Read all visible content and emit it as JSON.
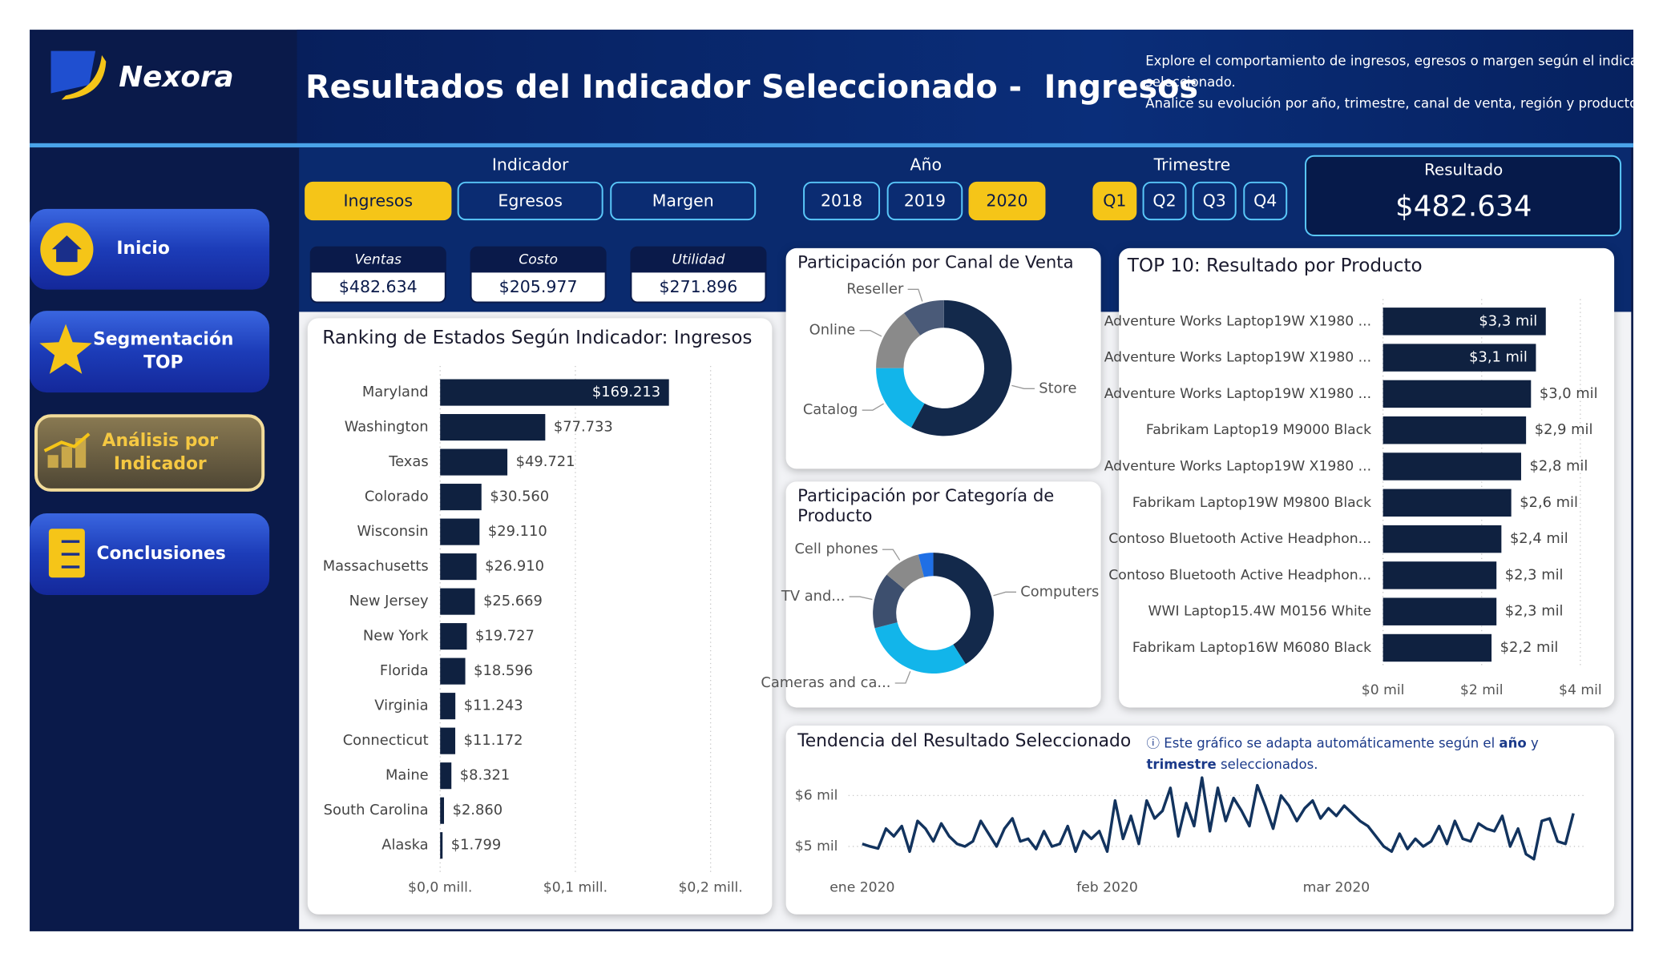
{
  "header": {
    "brand": "Nexora",
    "title": "Resultados del Indicador Seleccionado -  Ingresos",
    "description": [
      "Explore el comportamiento de ingresos, egresos o margen según el indicador",
      "seleccionado.",
      "Analice su evolución por año, trimestre, canal de venta, región y producto."
    ]
  },
  "nav": [
    {
      "lines": [
        "Inicio"
      ]
    },
    {
      "lines": [
        "Segmentación",
        "TOP"
      ]
    },
    {
      "lines": [
        "Análisis por",
        "Indicador"
      ],
      "active": true
    },
    {
      "lines": [
        "Conclusiones"
      ]
    }
  ],
  "filters": [
    {
      "label": "Indicador",
      "options": [
        "Ingresos",
        "Egresos",
        "Margen"
      ],
      "selected": 0
    },
    {
      "label": "Año",
      "options": [
        "2018",
        "2019",
        "2020"
      ],
      "selected": 2
    },
    {
      "label": "Trimestre",
      "options": [
        "Q1",
        "Q2",
        "Q3",
        "Q4"
      ],
      "selected": 0
    }
  ],
  "result": {
    "label": "Resultado",
    "value": "$482.634"
  },
  "kpis": [
    {
      "label": "Ventas",
      "value": "$482.634"
    },
    {
      "label": "Costo",
      "value": "$205.977"
    },
    {
      "label": "Utilidad",
      "value": "$271.896"
    }
  ],
  "chart_data": [
    {
      "type": "hbar",
      "title": "Ranking de Estados Según Indicador: Ingresos",
      "categories": [
        "Maryland",
        "Washington",
        "Texas",
        "Colorado",
        "Wisconsin",
        "Massachusetts",
        "New Jersey",
        "New York",
        "Florida",
        "Virginia",
        "Connecticut",
        "Maine",
        "South Carolina",
        "Alaska"
      ],
      "values": [
        169213,
        77733,
        49721,
        30560,
        29110,
        26910,
        25669,
        19727,
        18596,
        11243,
        11172,
        8321,
        2860,
        1799
      ],
      "value_labels": [
        "$169.213",
        "$77.733",
        "$49.721",
        "$30.560",
        "$29.110",
        "$26.910",
        "$25.669",
        "$19.727",
        "$18.596",
        "$11.243",
        "$11.172",
        "$8.321",
        "$2.860",
        "$1.799"
      ],
      "color": "#0f2140",
      "xlim": [
        0,
        240000
      ],
      "xticks": [
        {
          "value": 0,
          "label": "$0,0 mill."
        },
        {
          "value": 100000,
          "label": "$0,1 mill."
        },
        {
          "value": 200000,
          "label": "$0,2 mill."
        }
      ],
      "grid": true
    },
    {
      "type": "donut",
      "title": "Participación por Canal de Venta",
      "categories": [
        "Store",
        "Catalog",
        "Online",
        "Reseller"
      ],
      "values": [
        58,
        17,
        15,
        10
      ],
      "colors": [
        "#13294b",
        "#12b5ea",
        "#8a8a8a",
        "#4a5a78"
      ]
    },
    {
      "type": "donut",
      "title": "Participación por Categoría de Producto",
      "categories": [
        "Computers",
        "Cameras and ca...",
        "TV and...",
        "Cell phones",
        null
      ],
      "values": [
        41,
        30,
        15,
        10,
        4
      ],
      "colors": [
        "#13294b",
        "#12b5ea",
        "#3d4f6e",
        "#8a8a8a",
        "#1f6fe5"
      ]
    },
    {
      "type": "hbar",
      "title": "TOP 10: Resultado por Producto",
      "categories": [
        "Adventure Works Laptop19W X1980 ...",
        "Adventure Works Laptop19W X1980 ...",
        "Adventure Works Laptop19W X1980 ...",
        "Fabrikam Laptop19 M9000 Black",
        "Adventure Works Laptop19W X1980 ...",
        "Fabrikam Laptop19W M9800 Black",
        "Contoso Bluetooth Active Headphon...",
        "Contoso Bluetooth Active Headphon...",
        "WWI Laptop15.4W M0156 White",
        "Fabrikam Laptop16W M6080 Black"
      ],
      "values": [
        3300,
        3100,
        3000,
        2900,
        2800,
        2600,
        2400,
        2300,
        2300,
        2200
      ],
      "value_labels": [
        "$3,3 mil",
        "$3,1 mil",
        "$3,0 mil",
        "$2,9 mil",
        "$2,8 mil",
        "$2,6 mil",
        "$2,4 mil",
        "$2,3 mil",
        "$2,3 mil",
        "$2,2 mil"
      ],
      "color": "#0f2140",
      "xlim": [
        0,
        4300
      ],
      "xticks": [
        {
          "value": 0,
          "label": "$0 mil"
        },
        {
          "value": 2000,
          "label": "$2 mil"
        },
        {
          "value": 4000,
          "label": "$4 mil"
        }
      ],
      "grid": true
    },
    {
      "type": "line",
      "title": "Tendencia del Resultado Seleccionado",
      "note": [
        "ⓘ Este gráfico se adapta automáticamente según el ",
        "año",
        " y",
        "trimestre",
        " seleccionados."
      ],
      "values": [
        5050,
        5000,
        4960,
        5350,
        5200,
        5400,
        4900,
        5500,
        5350,
        5100,
        5450,
        5200,
        5050,
        5000,
        5100,
        5500,
        5250,
        5000,
        5350,
        5550,
        5100,
        5150,
        4950,
        5300,
        5000,
        5050,
        5400,
        4900,
        5300,
        5150,
        5300,
        4900,
        5900,
        5150,
        5600,
        5050,
        5900,
        5550,
        5700,
        6150,
        5200,
        5850,
        5400,
        6350,
        5300,
        6150,
        5500,
        5950,
        5700,
        5400,
        6200,
        5800,
        5350,
        6000,
        5800,
        5500,
        5750,
        5900,
        5550,
        5750,
        5600,
        5800,
        5650,
        5500,
        5400,
        5200,
        5000,
        4900,
        5250,
        4950,
        5150,
        5000,
        5100,
        5400,
        5050,
        5500,
        5150,
        5100,
        5450,
        5350,
        5300,
        5600,
        5000,
        5350,
        4850,
        4750,
        5500,
        5550,
        5100,
        5050,
        5650
      ],
      "color": "#12335e",
      "xlim": [
        0,
        90
      ],
      "xticks": [
        {
          "value": 0,
          "label": "ene 2020"
        },
        {
          "value": 31,
          "label": "feb 2020"
        },
        {
          "value": 60,
          "label": "mar 2020"
        }
      ],
      "ylim": [
        4550,
        6400
      ],
      "yticks": [
        {
          "value": 5000,
          "label": "$5 mil"
        },
        {
          "value": 6000,
          "label": "$6 mil"
        }
      ],
      "grid": true
    }
  ]
}
